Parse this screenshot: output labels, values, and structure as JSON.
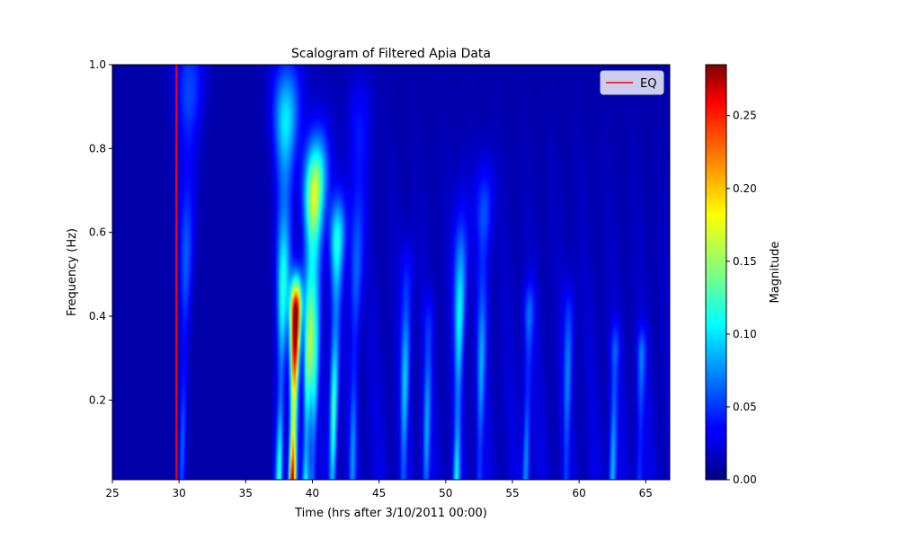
{
  "chart_data": {
    "type": "heatmap",
    "title": "Scalogram of Filtered Apia Data",
    "xlabel": "Time (hrs after 3/10/2011 00:00)",
    "ylabel": "Frequency (Hz)",
    "xlim": [
      25,
      66.8
    ],
    "ylim": [
      0.01,
      1.0
    ],
    "xticks": [
      "25",
      "30",
      "35",
      "40",
      "45",
      "50",
      "55",
      "60",
      "65"
    ],
    "yticks": [
      "0.2",
      "0.4",
      "0.6",
      "0.8",
      "1.0"
    ],
    "grid": false,
    "colormap": "jet",
    "colorbar": {
      "label": "Magnitude",
      "range": [
        0.0,
        0.285
      ],
      "ticks": [
        "0.00",
        "0.05",
        "0.10",
        "0.15",
        "0.20",
        "0.25"
      ]
    },
    "marker_line": {
      "name": "EQ",
      "x": 29.8,
      "color": "#ff0000"
    },
    "legend": {
      "placement": "top-right",
      "entries": [
        "EQ"
      ]
    },
    "energy_bursts": [
      {
        "t": 30.2,
        "f_top": 0.88,
        "peak": 0.05
      },
      {
        "t": 37.5,
        "f_top": 0.82,
        "peak": 0.1
      },
      {
        "t": 38.5,
        "f_top": 0.4,
        "peak": 0.285
      },
      {
        "t": 39.5,
        "f_top": 0.62,
        "peak": 0.13
      },
      {
        "t": 40.0,
        "f_top": 0.7,
        "peak": 0.09
      },
      {
        "t": 41.5,
        "f_top": 0.55,
        "peak": 0.11
      },
      {
        "t": 43.0,
        "f_top": 0.75,
        "peak": 0.05
      },
      {
        "t": 46.8,
        "f_top": 0.45,
        "peak": 0.07
      },
      {
        "t": 48.5,
        "f_top": 0.35,
        "peak": 0.06
      },
      {
        "t": 50.8,
        "f_top": 0.55,
        "peak": 0.09
      },
      {
        "t": 52.5,
        "f_top": 0.6,
        "peak": 0.06
      },
      {
        "t": 56.0,
        "f_top": 0.38,
        "peak": 0.06
      },
      {
        "t": 59.0,
        "f_top": 0.4,
        "peak": 0.05
      },
      {
        "t": 62.5,
        "f_top": 0.3,
        "peak": 0.07
      },
      {
        "t": 64.5,
        "f_top": 0.3,
        "peak": 0.05
      }
    ]
  }
}
